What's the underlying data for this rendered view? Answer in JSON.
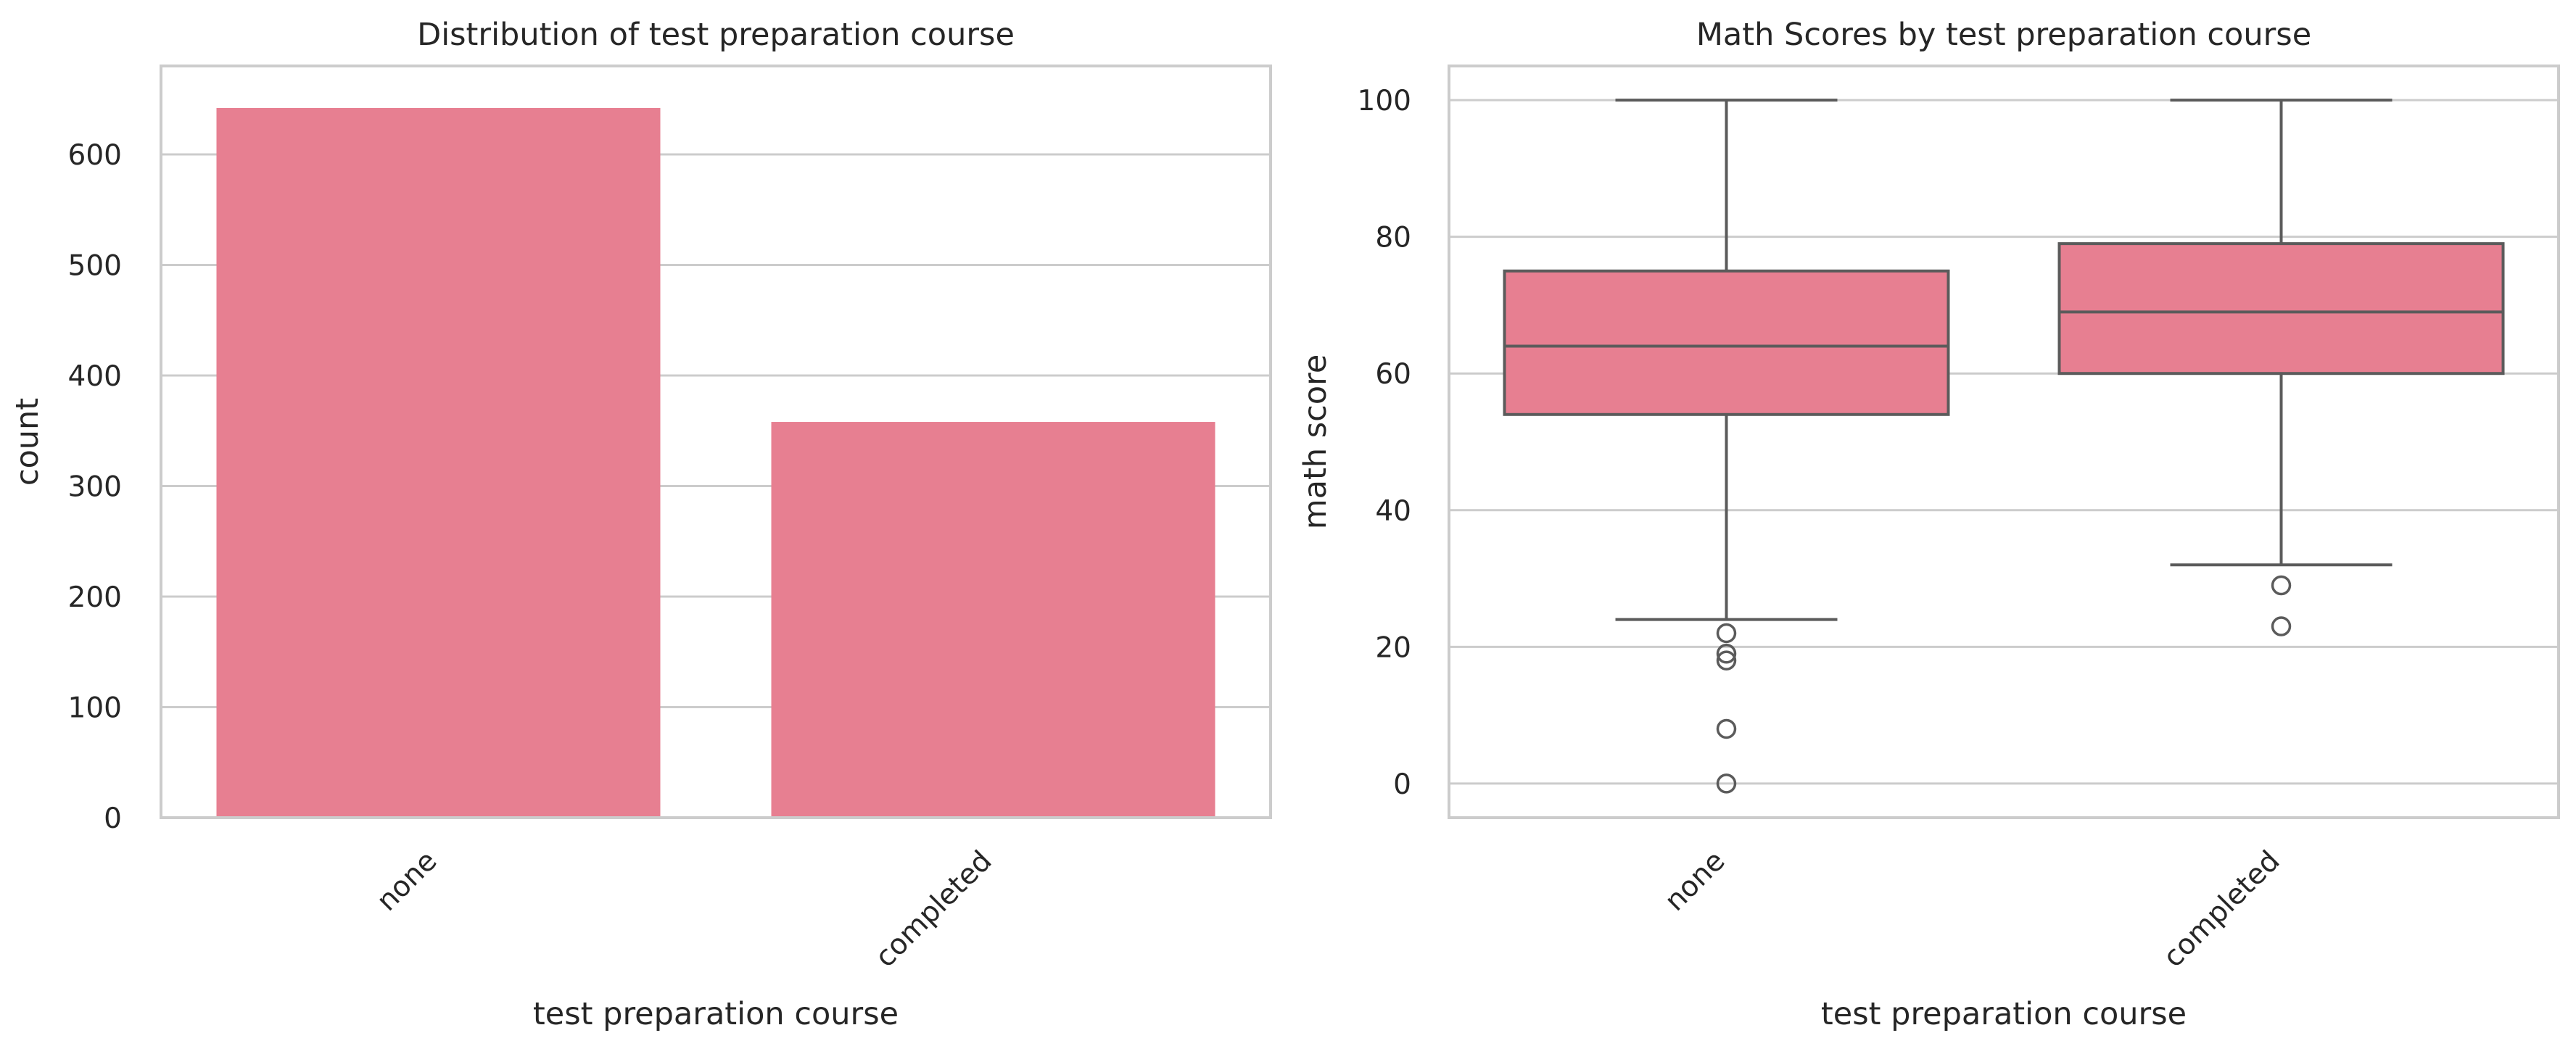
{
  "colors": {
    "bar_fill": "#e77f91",
    "box_fill": "#e77f91",
    "box_line": "#5b5b5b",
    "grid": "#cccccc",
    "frame": "#cccccc",
    "text": "#262626",
    "background": "#ffffff"
  },
  "chart_data": [
    {
      "type": "bar",
      "title": "Distribution of test preparation course",
      "xlabel": "test preparation course",
      "ylabel": "count",
      "categories": [
        "none",
        "completed"
      ],
      "values": [
        642,
        358
      ],
      "ylim": [
        0,
        680
      ],
      "yticks": [
        0,
        100,
        200,
        300,
        400,
        500,
        600
      ],
      "ytick_labels": [
        "0",
        "100",
        "200",
        "300",
        "400",
        "500",
        "600"
      ],
      "grid": "horizontal",
      "legend": "none"
    },
    {
      "type": "box",
      "title": "Math Scores by test preparation course",
      "xlabel": "test preparation course",
      "ylabel": "math score",
      "categories": [
        "none",
        "completed"
      ],
      "boxes": [
        {
          "whisker_low": 24,
          "q1": 54,
          "median": 64,
          "q3": 75,
          "whisker_high": 100,
          "outliers": [
            22,
            19,
            18,
            8,
            0
          ]
        },
        {
          "whisker_low": 32,
          "q1": 60,
          "median": 69,
          "q3": 79,
          "whisker_high": 100,
          "outliers": [
            29,
            23
          ]
        }
      ],
      "ylim": [
        -5,
        105
      ],
      "yticks": [
        0,
        20,
        40,
        60,
        80,
        100
      ],
      "ytick_labels": [
        "0",
        "20",
        "40",
        "60",
        "80",
        "100"
      ],
      "grid": "horizontal",
      "legend": "none"
    }
  ]
}
